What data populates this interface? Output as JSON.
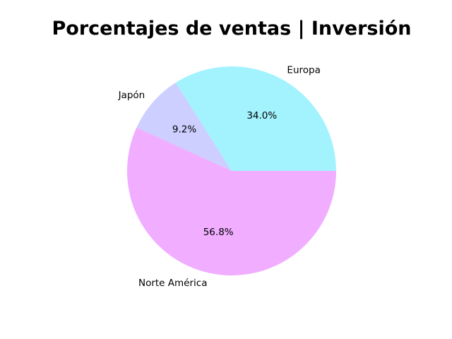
{
  "chart_data": {
    "type": "pie",
    "title": "Porcentajes de ventas | Inversión",
    "categories": [
      "Europa",
      "Japón",
      "Norte América"
    ],
    "values": [
      34.0,
      9.2,
      56.8
    ],
    "percent_labels": [
      "34.0%",
      "9.2%",
      "56.8%"
    ],
    "colors": [
      "#a3f3ff",
      "#cccfff",
      "#f1adff"
    ],
    "start_angle_deg": 0,
    "direction": "counterclockwise"
  }
}
